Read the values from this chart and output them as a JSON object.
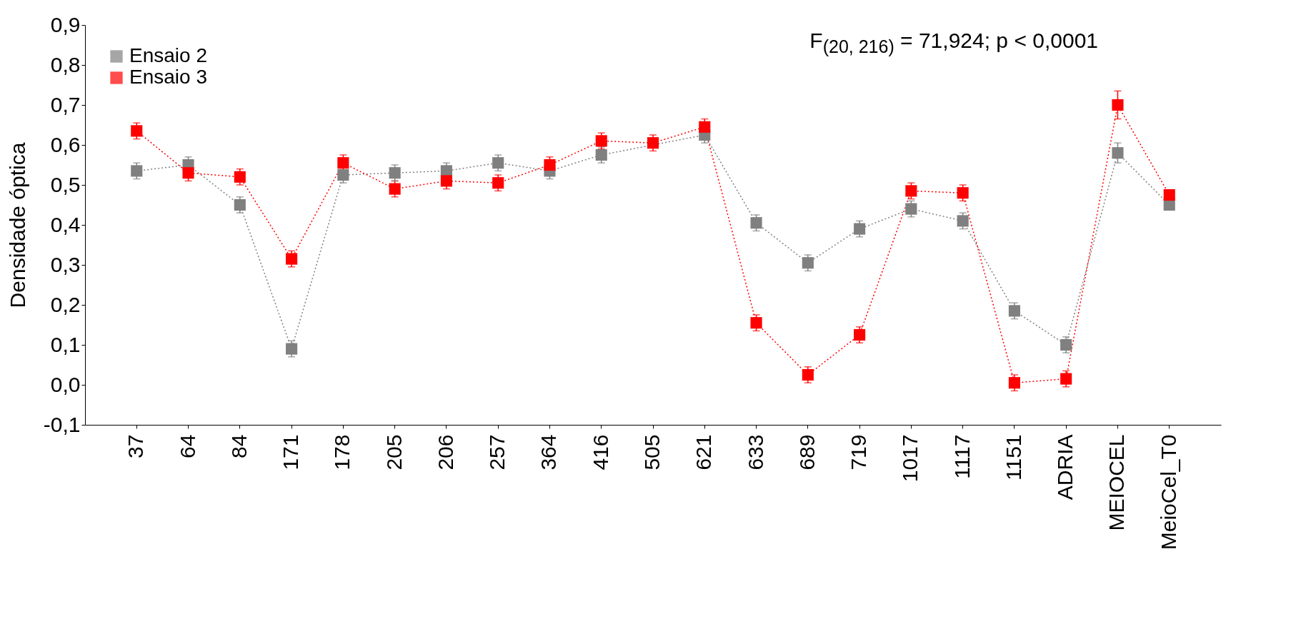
{
  "chart_data": {
    "type": "line",
    "ylabel": "Densidade óptica",
    "categories": [
      "37",
      "64",
      "84",
      "171",
      "178",
      "205",
      "206",
      "257",
      "364",
      "416",
      "505",
      "621",
      "633",
      "689",
      "719",
      "1017",
      "1117",
      "1151",
      "ADRIA",
      "MEIOCEL",
      "MeioCel_T0"
    ],
    "series": [
      {
        "name": "Ensaio 2",
        "color": "#808080",
        "values": [
          0.535,
          0.55,
          0.45,
          0.09,
          0.525,
          0.53,
          0.535,
          0.555,
          0.535,
          0.575,
          null,
          0.625,
          0.405,
          0.305,
          0.39,
          0.44,
          0.41,
          0.185,
          0.1,
          0.58,
          0.45
        ],
        "errors": [
          0.02,
          0.02,
          0.02,
          0.02,
          0.02,
          0.02,
          0.02,
          0.02,
          0.02,
          0.02,
          null,
          0.02,
          0.02,
          0.02,
          0.02,
          0.02,
          0.02,
          0.02,
          0.02,
          0.025,
          0.01
        ]
      },
      {
        "name": "Ensaio 3",
        "color": "#ff0000",
        "values": [
          0.635,
          0.53,
          0.52,
          0.315,
          0.555,
          0.49,
          0.51,
          0.505,
          0.55,
          0.61,
          0.605,
          0.645,
          0.155,
          0.025,
          0.125,
          0.485,
          0.48,
          0.005,
          0.015,
          0.7,
          0.475
        ],
        "errors": [
          0.02,
          0.02,
          0.02,
          0.02,
          0.02,
          0.02,
          0.02,
          0.02,
          0.02,
          0.02,
          0.02,
          0.02,
          0.02,
          0.02,
          0.02,
          0.02,
          0.02,
          0.02,
          0.02,
          0.035,
          0.01
        ]
      }
    ],
    "ylim": [
      -0.1,
      0.9
    ],
    "yticks": [
      {
        "value": -0.1,
        "label": "-0,1"
      },
      {
        "value": 0,
        "label": "0,0"
      },
      {
        "value": 0.1,
        "label": "0,1"
      },
      {
        "value": 0.2,
        "label": "0,2"
      },
      {
        "value": 0.3,
        "label": "0,3"
      },
      {
        "value": 0.4,
        "label": "0,4"
      },
      {
        "value": 0.5,
        "label": "0,5"
      },
      {
        "value": 0.6,
        "label": "0,6"
      },
      {
        "value": 0.7,
        "label": "0,7"
      },
      {
        "value": 0.8,
        "label": "0,8"
      },
      {
        "value": 0.9,
        "label": "0,9"
      }
    ],
    "annotations": [
      "F$_{(20, 216)}$ = 71,924; p < 0,0001"
    ],
    "legend": "top left",
    "marker": "square",
    "line_style": "dotted",
    "grid": false
  }
}
